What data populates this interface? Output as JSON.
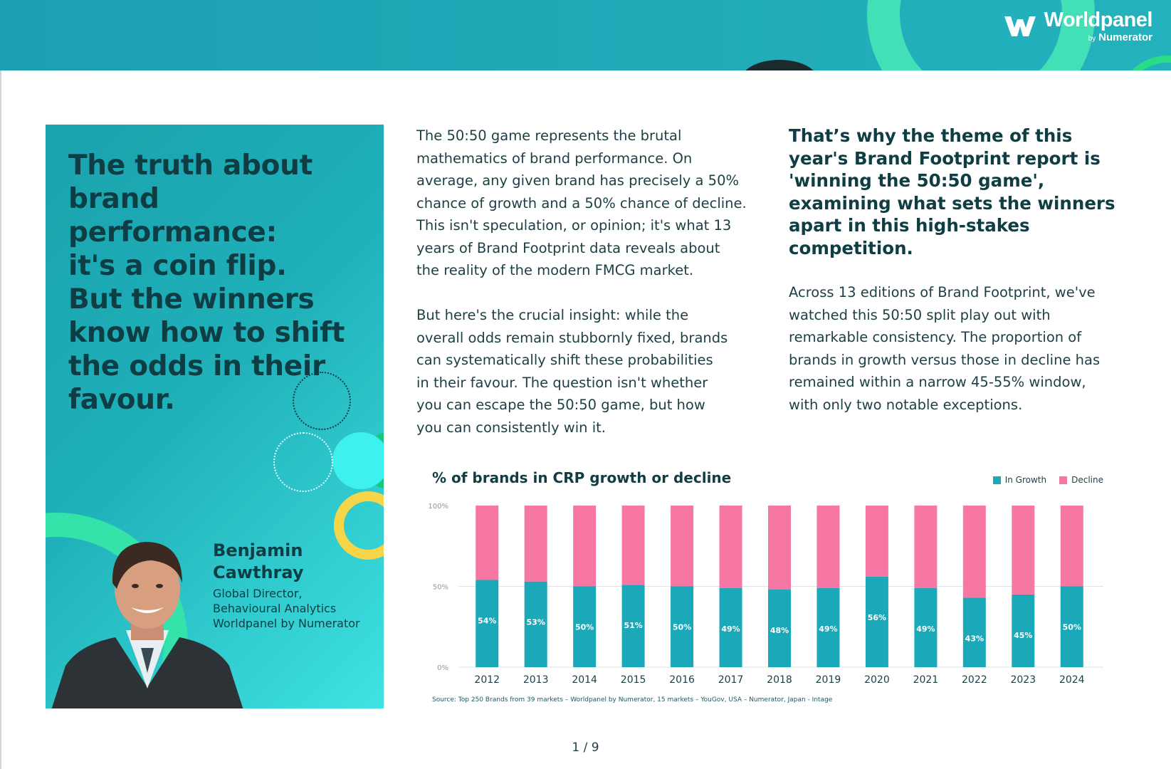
{
  "brand": {
    "logo_text": "Worldpanel",
    "logo_by": "by",
    "logo_sub": "Numerator"
  },
  "hero": {
    "title_lines": [
      "The truth about",
      "brand performance:",
      "it's a coin flip.",
      "But the winners",
      "know how to shift",
      "the odds in their",
      "favour."
    ],
    "name_lines": [
      "Benjamin",
      "Cawthray"
    ],
    "role_lines": [
      "Global Director,",
      "Behavioural Analytics",
      "Worldpanel by Numerator"
    ]
  },
  "middle_column": {
    "paragraph1_lines": [
      "The 50:50 game represents the brutal",
      "mathematics of brand performance. On",
      "average, any given brand has precisely a 50%",
      "chance of growth and a 50% chance of decline.",
      "This isn't speculation, or opinion; it's what 13",
      "years of Brand Footprint data reveals about",
      "the reality of the modern FMCG market."
    ],
    "paragraph2_lines": [
      "But here's the crucial insight: while the",
      "overall odds remain stubbornly fixed, brands",
      "can systematically shift these probabilities",
      "in their favour. The question isn't whether",
      "you can escape the 50:50 game, but how",
      "you can consistently win it."
    ]
  },
  "right_column": {
    "lead_lines": [
      "That’s why the theme of this",
      "year's Brand Footprint report is",
      "'winning the 50:50 game',",
      "examining what sets the winners",
      "apart in this high-stakes",
      "competition."
    ],
    "body_lines": [
      "Across 13 editions of Brand Footprint, we've",
      "watched this 50:50 split play out with",
      "remarkable consistency. The proportion of",
      "brands in growth versus those in decline has",
      "remained within a narrow 45-55% window,",
      "with only two notable exceptions."
    ]
  },
  "chart_data": {
    "type": "bar",
    "stacked": true,
    "title": "% of brands in CRP growth or decline",
    "categories": [
      "2012",
      "2013",
      "2014",
      "2015",
      "2016",
      "2017",
      "2018",
      "2019",
      "2020",
      "2021",
      "2022",
      "2023",
      "2024"
    ],
    "series": [
      {
        "name": "In Growth",
        "color": "#1ba8b8",
        "values": [
          54,
          53,
          50,
          51,
          50,
          49,
          48,
          49,
          56,
          49,
          43,
          45,
          50
        ]
      },
      {
        "name": "Decline",
        "color": "#f777a4",
        "values": [
          46,
          47,
          50,
          49,
          50,
          51,
          52,
          51,
          44,
          51,
          57,
          55,
          50
        ]
      }
    ],
    "data_labels": [
      "54%",
      "53%",
      "50%",
      "51%",
      "50%",
      "49%",
      "48%",
      "49%",
      "56%",
      "49%",
      "43%",
      "45%",
      "50%"
    ],
    "y_ticks": [
      "100%",
      "50%",
      "0%"
    ],
    "ylim": [
      0,
      100
    ],
    "gridline_at": 50,
    "legend_position": "top-right",
    "source": "Source: Top 250 Brands from 39 markets – Worldpanel by Numerator, 15 markets – YouGov, USA – Numerator, Japan - Intage"
  },
  "pagination": {
    "label": "1 / 9"
  },
  "colors": {
    "banner": "#1ba3b3",
    "growth": "#1ba8b8",
    "decline": "#f777a4",
    "ink": "#0f3d44"
  }
}
